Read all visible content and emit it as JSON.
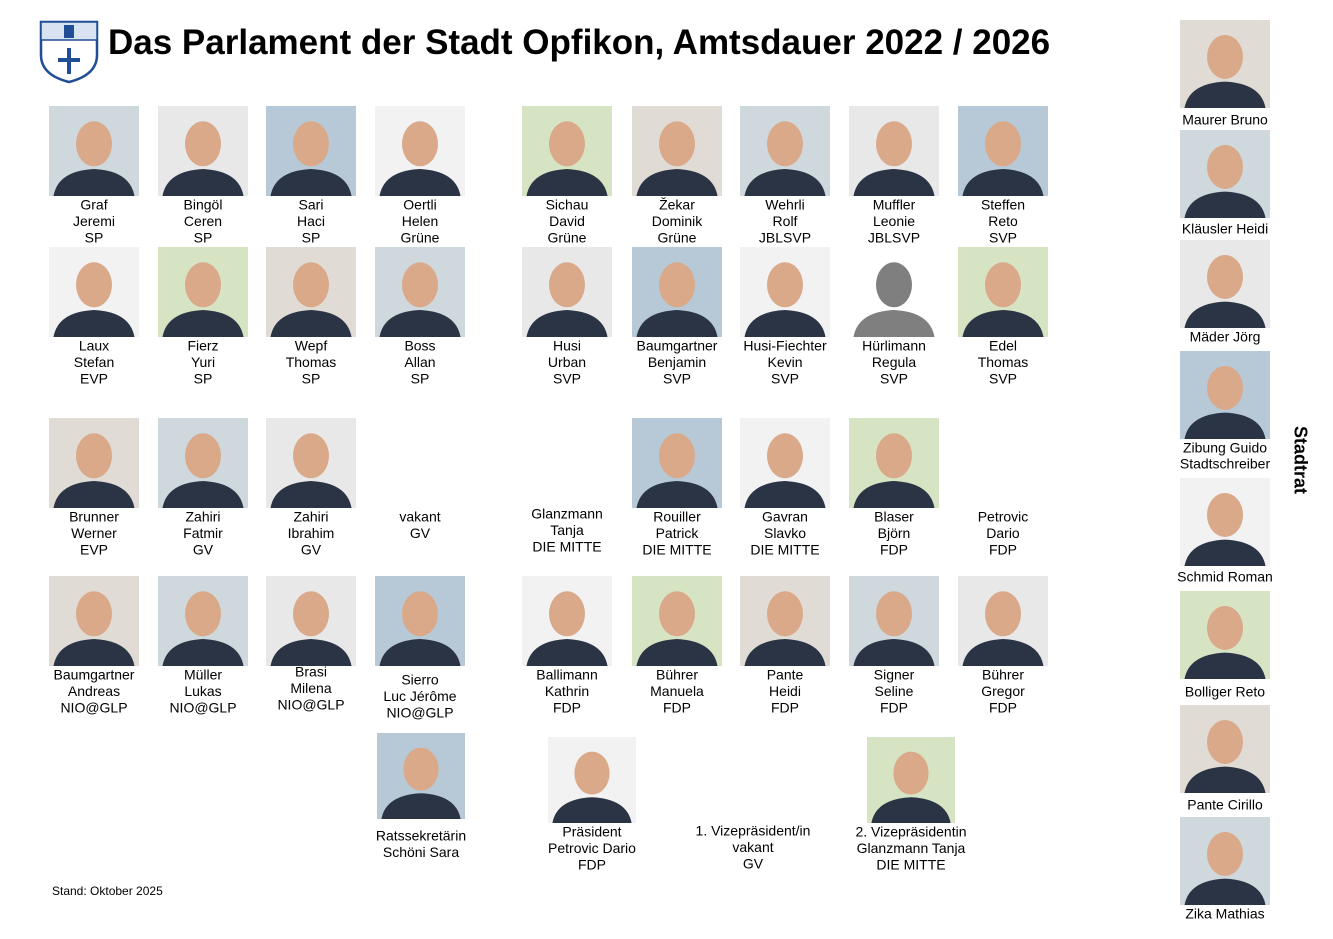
{
  "header": {
    "title": "Das Parlament der Stadt Opfikon, Amtsdauer 2022 / 2026"
  },
  "members": [
    [
      "Graf",
      "Jeremi",
      "SP"
    ],
    [
      "Bingöl",
      "Ceren",
      "SP"
    ],
    [
      "Sari",
      "Haci",
      "SP"
    ],
    [
      "Oertli",
      "Helen",
      "Grüne"
    ],
    [
      "Sichau",
      "David",
      "Grüne"
    ],
    [
      "Žekar",
      "Dominik",
      "Grüne"
    ],
    [
      "Wehrli",
      "Rolf",
      "JBLSVP"
    ],
    [
      "Muffler",
      "Leonie",
      "JBLSVP"
    ],
    [
      "Steffen",
      "Reto",
      "SVP"
    ],
    [
      "Laux",
      "Stefan",
      "EVP"
    ],
    [
      "Fierz",
      "Yuri",
      "SP"
    ],
    [
      "Wepf",
      "Thomas",
      "SP"
    ],
    [
      "Boss",
      "Allan",
      "SP"
    ],
    [
      "Husi",
      "Urban",
      "SVP"
    ],
    [
      "Baumgartner",
      "Benjamin",
      "SVP"
    ],
    [
      "Husi-Fiechter",
      "Kevin",
      "SVP"
    ],
    [
      "Hürlimann",
      "Regula",
      "SVP"
    ],
    [
      "Edel",
      "Thomas",
      "SVP"
    ],
    [
      "Brunner",
      "Werner",
      "EVP"
    ],
    [
      "Zahiri",
      "Fatmir",
      "GV"
    ],
    [
      "Zahiri",
      "Ibrahim",
      "GV"
    ],
    [
      "vakant",
      "GV"
    ],
    [
      "Glanzmann",
      "Tanja",
      "DIE MITTE"
    ],
    [
      "Rouiller",
      "Patrick",
      "DIE MITTE"
    ],
    [
      "Gavran",
      "Slavko",
      "DIE MITTE"
    ],
    [
      "Blaser",
      "Björn",
      "FDP"
    ],
    [
      "Petrovic",
      "Dario",
      "FDP"
    ],
    [
      "Baumgartner",
      "Andreas",
      "NIO@GLP"
    ],
    [
      "Müller",
      "Lukas",
      "NIO@GLP"
    ],
    [
      "Brasi",
      "Milena",
      "NIO@GLP"
    ],
    [
      "Sierro",
      "Luc Jérôme",
      "NIO@GLP"
    ],
    [
      "Ballimann",
      "Kathrin",
      "FDP"
    ],
    [
      "Bührer",
      "Manuela",
      "FDP"
    ],
    [
      "Pante",
      "Heidi",
      "FDP"
    ],
    [
      "Signer",
      "Seline",
      "FDP"
    ],
    [
      "Bührer",
      "Gregor",
      "FDP"
    ]
  ],
  "officials": [
    [
      "Ratssekretärin",
      "Schöni Sara"
    ],
    [
      "Präsident",
      "Petrovic Dario",
      "FDP"
    ],
    [
      "1. Vizepräsident/in",
      "vakant",
      "GV"
    ],
    [
      "2. Vizepräsidentin",
      "Glanzmann Tanja",
      "DIE MITTE"
    ]
  ],
  "city_council": {
    "label": "Stadtrat",
    "members": [
      [
        "Maurer Bruno"
      ],
      [
        "Kläusler Heidi"
      ],
      [
        "Mäder Jörg"
      ],
      [
        "Zibung Guido",
        "Stadtschreiber"
      ],
      [
        "Schmid Roman"
      ],
      [
        "Bolliger Reto"
      ],
      [
        "Pante Cirillo"
      ],
      [
        "Zika Mathias"
      ]
    ]
  },
  "footer": {
    "date": "Stand: Oktober 2025"
  }
}
